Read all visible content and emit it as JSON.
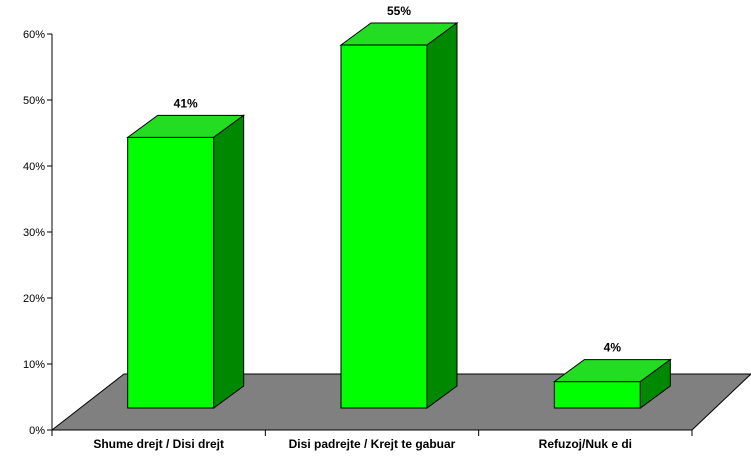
{
  "chart_data": {
    "type": "bar",
    "categories": [
      "Shume drejt / Disi drejt",
      "Disi padrejte / Krejt te gabuar",
      "Refuzoj/Nuk e di"
    ],
    "values": [
      41,
      55,
      4
    ],
    "data_labels": [
      "41%",
      "55%",
      "4%"
    ],
    "ylim": [
      0,
      60
    ],
    "yticks": [
      0,
      10,
      20,
      30,
      40,
      50,
      60
    ],
    "ytick_labels": [
      "0%",
      "10%",
      "20%",
      "30%",
      "40%",
      "50%",
      "60%"
    ],
    "grid": false,
    "style": "3d",
    "colors": {
      "bar_front": "#00ff00",
      "bar_top": "#22dd22",
      "bar_side": "#008800",
      "floor": "#808080",
      "axis": "#000000"
    }
  }
}
